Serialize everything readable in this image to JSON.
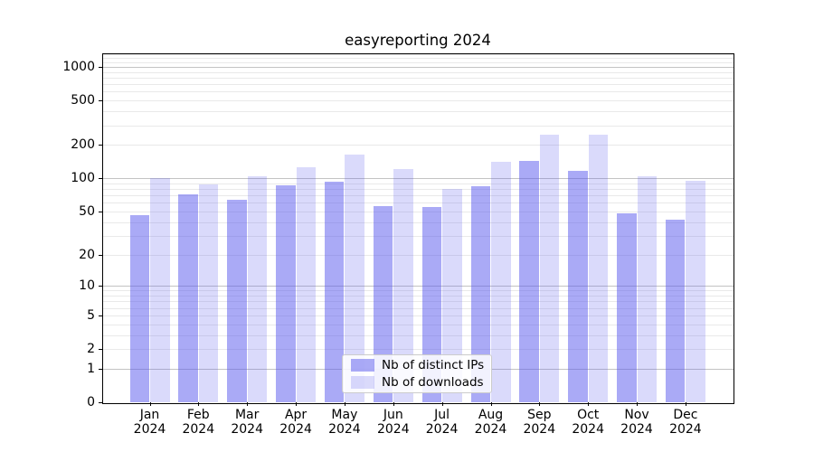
{
  "title": "easyreporting 2024",
  "chart_data": {
    "type": "bar",
    "title": "easyreporting 2024",
    "yscale": "log-like (log10 of 1+y), includes 0",
    "ylim": [
      0,
      1330
    ],
    "grid": true,
    "legend_position": "inside plot, lower center",
    "categories": [
      "Jan 2024",
      "Feb 2024",
      "Mar 2024",
      "Apr 2024",
      "May 2024",
      "Jun 2024",
      "Jul 2024",
      "Aug 2024",
      "Sep 2024",
      "Oct 2024",
      "Nov 2024",
      "Dec 2024"
    ],
    "y_tick_labels": [
      "0",
      "1",
      "2",
      "5",
      "10",
      "20",
      "50",
      "100",
      "200",
      "500",
      "1000"
    ],
    "y_tick_values": [
      0,
      1,
      2,
      5,
      10,
      20,
      50,
      100,
      200,
      500,
      1000
    ],
    "y_major_gridline_values": [
      1,
      10,
      100,
      1000
    ],
    "series": [
      {
        "name": "Nb of distinct IPs",
        "color": "rgba(85,85,238,0.5)",
        "color_hex_on_white": "#aaaaf6",
        "values": [
          46,
          72,
          64,
          87,
          93,
          56,
          55,
          85,
          144,
          116,
          48,
          42
        ]
      },
      {
        "name": "Nb of downloads",
        "color": "rgba(85,85,238,0.22)",
        "color_hex_on_white": "#d9d9f9",
        "values": [
          100,
          88,
          104,
          125,
          163,
          122,
          80,
          140,
          245,
          245,
          105,
          94
        ]
      }
    ],
    "colors": {
      "major_grid": "#c3c3c3",
      "minor_grid": "#e9e9e9",
      "axis": "#000000",
      "background": "#ffffff"
    }
  }
}
